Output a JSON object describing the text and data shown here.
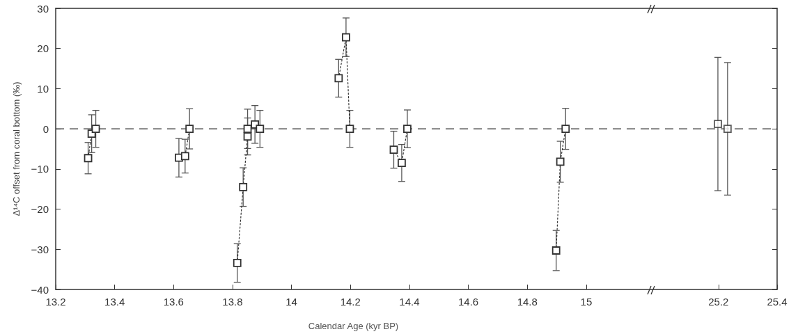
{
  "chart_data": [
    {
      "type": "line",
      "xlabel": "Calendar Age (kyr BP)",
      "ylabel": "Δ¹⁴C offset from coral bottom (‰)",
      "xlim": [
        13.2,
        15.22
      ],
      "xticks": [
        13.2,
        13.4,
        13.6,
        13.8,
        14,
        14.2,
        14.4,
        14.6,
        14.8,
        15
      ],
      "ylim": [
        -40,
        30
      ],
      "yticks": [
        -40,
        -30,
        -20,
        -10,
        0,
        10,
        20,
        30
      ],
      "marker": "square",
      "line_style": "dotted",
      "grid": false,
      "ref_lines": [
        {
          "axis": "y",
          "value": 0,
          "line_style": "dashed",
          "color": "#333333"
        }
      ],
      "series": [
        {
          "color": "#333333",
          "x": [
            13.31,
            13.322,
            13.336
          ],
          "values": [
            -7.3,
            -1.2,
            0
          ],
          "errors": [
            3.9,
            4.7,
            4.6
          ]
        },
        {
          "color": "#333333",
          "x": [
            13.618,
            13.639,
            13.654
          ],
          "values": [
            -7.2,
            -6.8,
            0
          ],
          "errors": [
            4.8,
            4.2,
            5
          ]
        },
        {
          "color": "#333333",
          "x": [
            13.816,
            13.836,
            13.851,
            13.851,
            13.876,
            13.893
          ],
          "values": [
            -33.4,
            -14.5,
            -1.9,
            0,
            1.1,
            0
          ],
          "errors": [
            4.8,
            4.8,
            4.6,
            4.9,
            4.7,
            4.6
          ]
        },
        {
          "color": "#333333",
          "x": [
            14.16,
            14.185,
            14.198
          ],
          "values": [
            12.6,
            22.8,
            0
          ],
          "errors": [
            4.7,
            4.8,
            4.6
          ]
        },
        {
          "color": "#333333",
          "x": [
            14.347,
            14.374,
            14.393
          ],
          "values": [
            -5.2,
            -8.5,
            0
          ],
          "errors": [
            4.6,
            4.6,
            4.7
          ]
        },
        {
          "color": "#333333",
          "x": [
            14.898,
            14.912,
            14.93
          ],
          "values": [
            -30.3,
            -8.2,
            0
          ],
          "errors": [
            5,
            5.1,
            5.1
          ]
        }
      ]
    },
    {
      "type": "scatter",
      "xlim": [
        24.97,
        25.4
      ],
      "xticks": [
        25.2,
        25.4
      ],
      "ylim": [
        -40,
        30
      ],
      "yticks": [
        -40,
        -30,
        -20,
        -10,
        0,
        10,
        20,
        30
      ],
      "tick_labels": "x",
      "marker": "square",
      "grid": false,
      "ref_lines": [
        {
          "axis": "y",
          "value": 0,
          "line_style": "dashed",
          "color": "#333333"
        }
      ],
      "series": [
        {
          "color": "#333333",
          "x": [
            25.198,
            25.231
          ],
          "values": [
            1.2,
            0
          ],
          "errors": [
            16.6,
            16.5
          ]
        }
      ]
    }
  ]
}
